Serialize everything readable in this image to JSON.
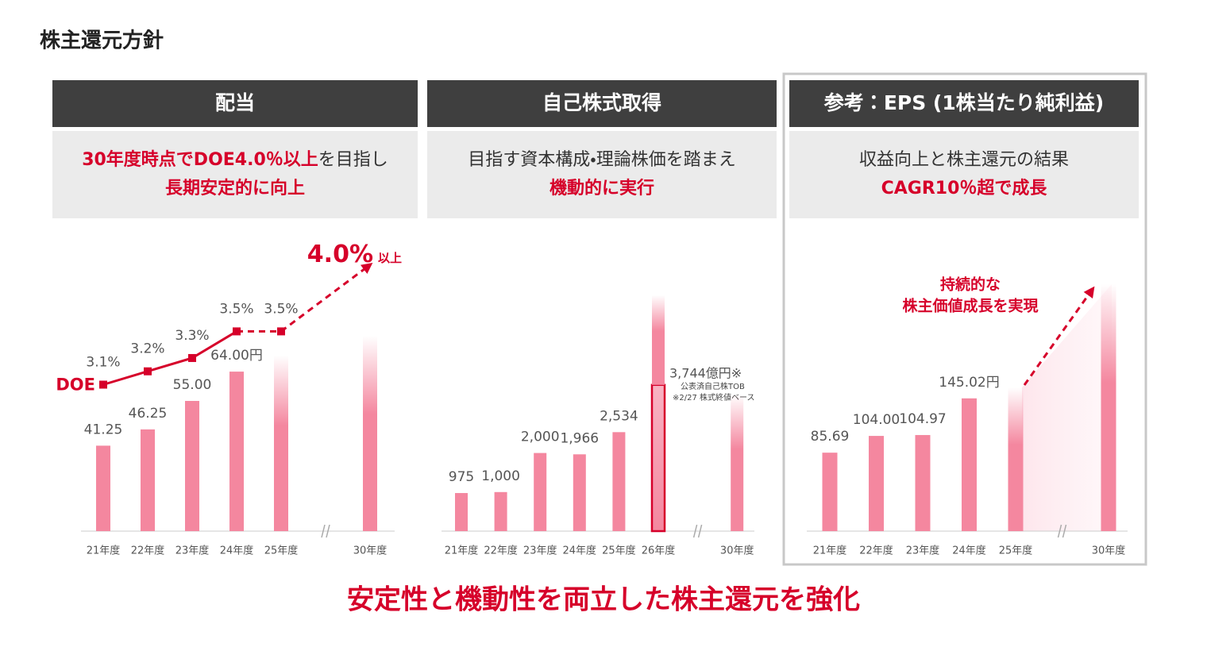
{
  "title": "株主還元方針",
  "footer": "安定性と機動性を両立した株主還元を強化",
  "chart_data": [
    {
      "type": "bar",
      "title": "配当",
      "subtitle": [
        [
          {
            "text": "30年度時点でDOE4.0％以上",
            "color": "#d6002a"
          },
          {
            "text": "を目指し"
          }
        ],
        [
          {
            "text": "長期安定的に向上",
            "color": "#d6002a"
          }
        ]
      ],
      "categories": [
        "21年度",
        "22年度",
        "23年度",
        "24年度",
        "25年度",
        null,
        "30年度"
      ],
      "ylim": [
        15,
        105
      ],
      "y2lim": [
        2,
        4.2
      ],
      "stacked": true,
      "series": [
        {
          "style": "solid",
          "color": "#f4879f",
          "values": [
            41.25,
            46.25,
            55,
            64,
            null,
            null,
            null
          ],
          "value_labels": [
            "41.25",
            "46.25",
            "55.00",
            "64.00円",
            null,
            null,
            null
          ]
        },
        {
          "style": "fade",
          "color": "#f4879f",
          "values": [
            null,
            null,
            null,
            null,
            69,
            null,
            75
          ]
        },
        {
          "name": "DOE",
          "type": "line",
          "axis": "y2",
          "color": "#d6002a",
          "dash_from": 3,
          "values": [
            3.1,
            3.2,
            3.3,
            3.5,
            3.5,
            null,
            4.0
          ],
          "value_labels": [
            "3.1%",
            "3.2%",
            "3.3%",
            "3.5%",
            "3.5%",
            null,
            "4.0%"
          ]
        }
      ],
      "annotation": "以上"
    },
    {
      "type": "bar",
      "title": "自己株式取得",
      "subtitle": [
        [
          {
            "text": "目指す資本構成・理論株価を踏まえ"
          }
        ],
        [
          {
            "text": "機動的に実行",
            "color": "#d6002a"
          }
        ]
      ],
      "categories": [
        "21年度",
        "22年度",
        "23年度",
        "24年度",
        "25年度",
        "26年度",
        null,
        "30年度"
      ],
      "ylim": [
        0,
        7500
      ],
      "stacked": true,
      "series": [
        {
          "style": "solid",
          "color": "#f4879f",
          "values": [
            975,
            1000,
            2000,
            1966,
            2534,
            null,
            null,
            null
          ],
          "value_labels": [
            "975",
            "1,000",
            "2,000",
            "1,966",
            "2,534",
            null,
            null,
            null
          ]
        },
        {
          "style": "outline",
          "color": "#d6002a",
          "values": [
            null,
            null,
            null,
            null,
            null,
            3744,
            null,
            null
          ],
          "value_labels": [
            null,
            null,
            null,
            null,
            null,
            "3,744億円※",
            null,
            null
          ]
        },
        {
          "style": "fade",
          "color": "#f4879f",
          "values": [
            null,
            null,
            null,
            null,
            null,
            2300,
            null,
            3500
          ]
        }
      ],
      "notes": [
        "公表済自己株TOB",
        "※2/27 株式終値ベース"
      ]
    },
    {
      "type": "bar",
      "title": "参考：EPS (1株当たり純利益)",
      "subtitle": [
        [
          {
            "text": "収益向上と株主還元の結果"
          }
        ],
        [
          {
            "text": "CAGR10％超で成長",
            "color": "#d6002a"
          }
        ]
      ],
      "categories": [
        "21年度",
        "22年度",
        "23年度",
        "24年度",
        "25年度",
        null,
        "30年度"
      ],
      "ylim": [
        0,
        320
      ],
      "stacked": true,
      "series": [
        {
          "style": "solid",
          "color": "#f4879f",
          "values": [
            85.69,
            104,
            104.97,
            145.02,
            null,
            null,
            null
          ],
          "value_labels": [
            "85.69",
            "104.00",
            "104.97",
            "145.02円",
            null,
            null,
            null
          ]
        },
        {
          "style": "fade",
          "color": "#f4879f",
          "values": [
            null,
            null,
            null,
            null,
            157,
            null,
            270
          ]
        }
      ],
      "annotation": [
        "持続的な",
        "株主価値成長を実現"
      ]
    }
  ]
}
